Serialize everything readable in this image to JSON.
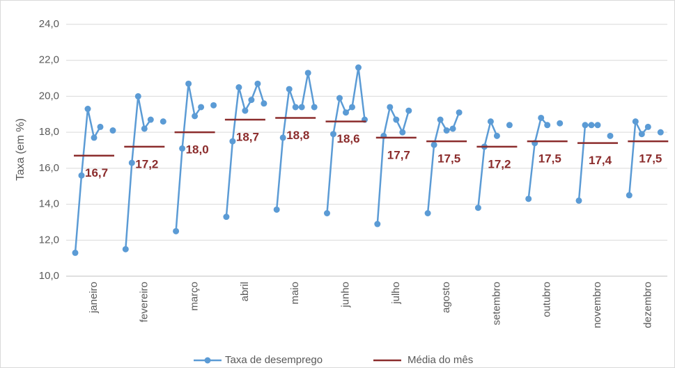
{
  "chart_data": {
    "type": "cycle-line",
    "y_axis_label": "Taxa (em %)",
    "categories": [
      "janeiro",
      "fevereiro",
      "março",
      "abril",
      "maio",
      "junho",
      "julho",
      "agosto",
      "setembro",
      "outubro",
      "novembro",
      "dezembro"
    ],
    "series": [
      {
        "name": "Taxa de desemprego",
        "color": "#5b9bd5",
        "values": [
          [
            11.3,
            15.6,
            19.3,
            17.7,
            18.3,
            null,
            18.1
          ],
          [
            11.5,
            16.3,
            20.0,
            18.2,
            18.7,
            null,
            18.6
          ],
          [
            12.5,
            17.1,
            20.7,
            18.9,
            19.4,
            null,
            19.5
          ],
          [
            13.3,
            17.5,
            20.5,
            19.2,
            19.8,
            20.7,
            19.6
          ],
          [
            13.7,
            17.7,
            20.4,
            19.4,
            19.4,
            21.3,
            19.4
          ],
          [
            13.5,
            17.9,
            19.9,
            19.1,
            19.4,
            21.6,
            18.7
          ],
          [
            12.9,
            17.8,
            19.4,
            18.7,
            18.0,
            19.2,
            null
          ],
          [
            13.5,
            17.3,
            18.7,
            18.1,
            18.2,
            19.1,
            null
          ],
          [
            13.8,
            17.2,
            18.6,
            17.8,
            null,
            18.4,
            null
          ],
          [
            14.3,
            17.4,
            18.8,
            18.4,
            null,
            18.5,
            null
          ],
          [
            14.2,
            18.4,
            18.4,
            18.4,
            null,
            17.8,
            null
          ],
          [
            14.5,
            18.6,
            17.9,
            18.3,
            null,
            18.0,
            null
          ]
        ]
      },
      {
        "name": "Média do mês",
        "color": "#8b2c2c",
        "values": [
          16.7,
          17.2,
          18.0,
          18.7,
          18.8,
          18.6,
          17.7,
          17.5,
          17.2,
          17.5,
          17.4,
          17.5
        ],
        "value_labels": [
          "16,7",
          "17,2",
          "18,0",
          "18,7",
          "18,8",
          "18,6",
          "17,7",
          "17,5",
          "17,2",
          "17,5",
          "17,4",
          "17,5"
        ]
      }
    ],
    "ylim": [
      10,
      24
    ],
    "yticks": [
      {
        "value": 10,
        "label": "10,0"
      },
      {
        "value": 12,
        "label": "12,0"
      },
      {
        "value": 14,
        "label": "14,0"
      },
      {
        "value": 16,
        "label": "16,0"
      },
      {
        "value": 18,
        "label": "18,0"
      },
      {
        "value": 20,
        "label": "20,0"
      },
      {
        "value": 22,
        "label": "22,0"
      },
      {
        "value": 24,
        "label": "24,0"
      }
    ],
    "grid": true,
    "legend": "bottom"
  }
}
